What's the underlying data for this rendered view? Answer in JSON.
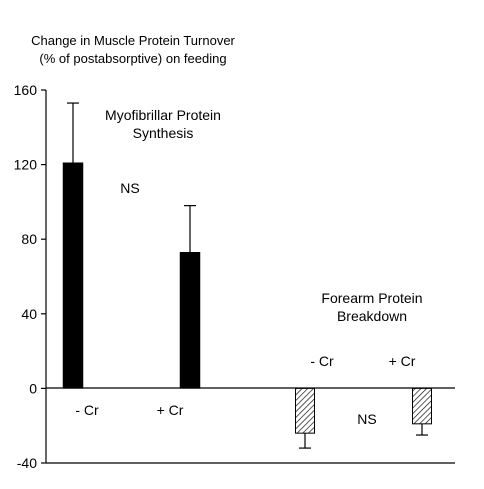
{
  "colors": {
    "synthesis_bar": "#000000",
    "breakdown_bar_fill": "#ffffff",
    "breakdown_bar_hatch": "#000000",
    "axis": "#000000",
    "text": "#000000"
  },
  "chart_data": {
    "type": "bar",
    "title_line1": "Change in Muscle Protein Turnover",
    "title_line2": "(% of postabsorptive) on feeding",
    "ylim": [
      -40,
      160
    ],
    "yticks": [
      -40,
      0,
      40,
      80,
      120,
      160
    ],
    "grid": false,
    "groups": [
      {
        "label_line1": "Myofibrillar Protein",
        "label_line2": "Synthesis",
        "significance": "NS",
        "pattern": "solid",
        "bars": [
          {
            "label": "- Cr",
            "value": 121,
            "error": 32
          },
          {
            "label": "+ Cr",
            "value": 73,
            "error": 25
          }
        ]
      },
      {
        "label_line1": "Forearm Protein",
        "label_line2": "Breakdown",
        "significance": "NS",
        "pattern": "hatched",
        "bars": [
          {
            "label": "- Cr",
            "value": -24,
            "error": 8
          },
          {
            "label": "+ Cr",
            "value": -19,
            "error": 6
          }
        ]
      }
    ]
  }
}
